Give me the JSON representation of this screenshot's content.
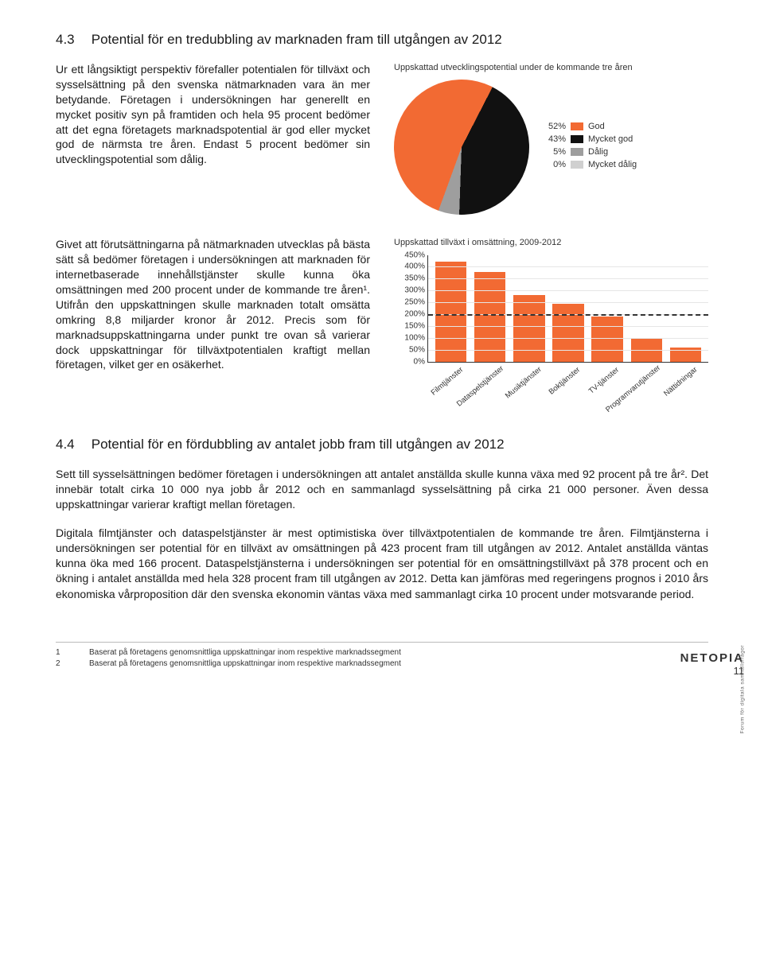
{
  "section43": {
    "number": "4.3",
    "title": "Potential för en tredubbling av marknaden fram till utgången av 2012",
    "para1": "Ur ett långsiktigt perspektiv förefaller potentialen för tillväxt och sysselsättning på den svenska nätmarknaden vara än mer betydande. Företagen i undersökningen har generellt en mycket positiv syn på framtiden och hela 95 procent bedömer att det egna företagets marknadspotential är god eller mycket god de närmsta tre åren. Endast 5 procent bedömer sin utvecklingspotential som dålig.",
    "para2": "Givet att förutsättningarna på nätmarknaden utvecklas på bästa sätt så bedömer företagen i undersökningen att marknaden för internetbaserade innehållstjänster skulle kunna öka omsättningen med 200 procent under de kommande tre åren¹. Utifrån den uppskattningen skulle marknaden totalt omsätta omkring 8,8 miljarder kronor år 2012. Precis som för marknadsuppskattningarna under punkt tre ovan så varierar dock uppskattningar för tillväxtpotentialen kraftigt mellan företagen, vilket ger en osäkerhet."
  },
  "pie_chart": {
    "title": "Uppskattad utvecklingspotential under de kommande tre åren",
    "slices": [
      {
        "pct": 52,
        "label": "God",
        "color": "#f26a33"
      },
      {
        "pct": 43,
        "label": "Mycket god",
        "color": "#111111"
      },
      {
        "pct": 5,
        "label": "Dålig",
        "color": "#9e9e9e"
      },
      {
        "pct": 0,
        "label": "Mycket dålig",
        "color": "#d0d0d0"
      }
    ],
    "start_angle": 200
  },
  "bar_chart": {
    "title": "Uppskattad tillväxt i omsättning, 2009-2012",
    "ymax": 450,
    "ytick_step": 50,
    "bar_color": "#f26a33",
    "reference_line": 200,
    "categories": [
      "Filmtjänster",
      "Dataspelstjänster",
      "Musiktjänster",
      "Boktjänster",
      "TV-tjänster",
      "Programvarutjänster",
      "Nättidningar"
    ],
    "values": [
      423,
      378,
      280,
      245,
      190,
      95,
      60
    ]
  },
  "section44": {
    "number": "4.4",
    "title": "Potential för en fördubbling av antalet jobb fram till utgången av 2012",
    "p1": "Sett till sysselsättningen bedömer företagen i undersökningen att antalet anställda skulle kunna växa med 92 procent på tre år². Det innebär totalt cirka 10 000 nya jobb år 2012 och en sammanlagd sysselsättning på cirka 21 000 personer. Även dessa uppskattningar varierar kraftigt mellan företagen.",
    "p2": "Digitala filmtjänster och dataspelstjänster är mest optimistiska över tillväxtpotentialen de kommande tre åren. Filmtjänsterna i undersökningen ser potential för en tillväxt av omsättningen på 423 procent fram till utgången av 2012. Antalet anställda väntas kunna öka med 166 procent. Dataspelstjänsterna i undersökningen ser potential för en omsättningstillväxt på 378 procent och en ökning i antalet anställda med hela 328 procent fram till utgången av 2012. Detta kan jämföras med regeringens prognos i 2010 års ekonomiska vårproposition där den svenska ekonomin väntas växa med sammanlagt cirka 10 procent under motsvarande period."
  },
  "footnotes": {
    "f1": {
      "num": "1",
      "text": "Baserat på företagens genomsnittliga uppskattningar inom respektive marknadssegment"
    },
    "f2": {
      "num": "2",
      "text": "Baserat på företagens genomsnittliga uppskattningar inom respektive marknadssegment"
    }
  },
  "page": {
    "number": "11",
    "logo": "NETOPIA",
    "logo_sub": "Forum för digitala samhällsfrågor"
  }
}
